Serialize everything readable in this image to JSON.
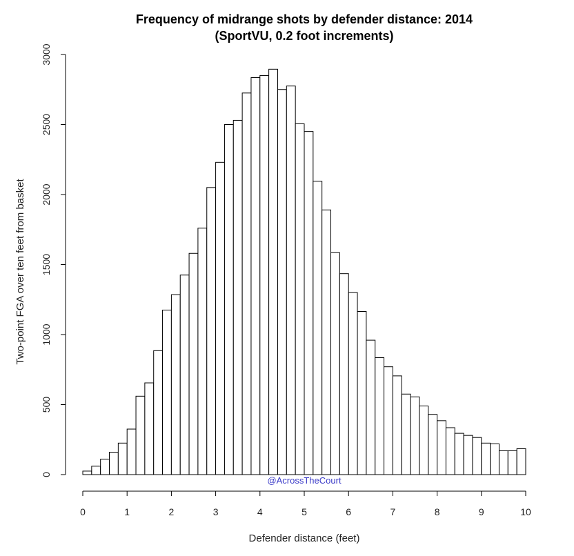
{
  "chart_data": {
    "type": "bar",
    "title": "Frequency of midrange shots by defender distance: 2014",
    "subtitle": "(SportVU, 0.2 foot increments)",
    "xlabel": "Defender distance (feet)",
    "ylabel": "Two-point FGA over ten feet from basket",
    "xlim": [
      0,
      10
    ],
    "ylim": [
      0,
      3000
    ],
    "bin_width": 0.2,
    "x_ticks": [
      "0",
      "1",
      "2",
      "3",
      "4",
      "5",
      "6",
      "7",
      "8",
      "9",
      "10"
    ],
    "y_ticks": [
      "0",
      "500",
      "1000",
      "1500",
      "2000",
      "2500",
      "3000"
    ],
    "bin_starts": [
      0.0,
      0.2,
      0.4,
      0.6,
      0.8,
      1.0,
      1.2,
      1.4,
      1.6,
      1.8,
      2.0,
      2.2,
      2.4,
      2.6,
      2.8,
      3.0,
      3.2,
      3.4,
      3.6,
      3.8,
      4.0,
      4.2,
      4.4,
      4.6,
      4.8,
      5.0,
      5.2,
      5.4,
      5.6,
      5.8,
      6.0,
      6.2,
      6.4,
      6.6,
      6.8,
      7.0,
      7.2,
      7.4,
      7.6,
      7.8,
      8.0,
      8.2,
      8.4,
      8.6,
      8.8,
      9.0,
      9.2,
      9.4,
      9.6,
      9.8
    ],
    "values": [
      25,
      60,
      110,
      160,
      225,
      325,
      560,
      655,
      885,
      1175,
      1285,
      1425,
      1580,
      1760,
      2050,
      2230,
      2500,
      2530,
      2725,
      2835,
      2850,
      2895,
      2750,
      2775,
      2505,
      2450,
      2095,
      1890,
      1585,
      1435,
      1300,
      1165,
      960,
      835,
      770,
      705,
      575,
      555,
      490,
      430,
      385,
      335,
      295,
      280,
      265,
      225,
      220,
      170,
      170,
      185
    ],
    "grid": false,
    "legend": "none"
  },
  "watermark": "@AcrossTheCourt"
}
